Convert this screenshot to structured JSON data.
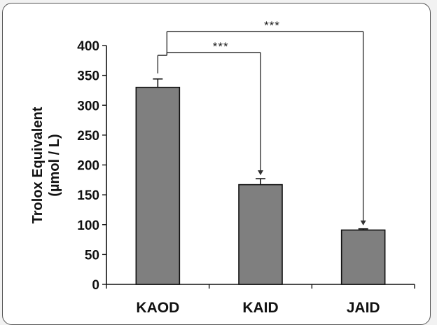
{
  "chart_data": {
    "type": "bar",
    "categories": [
      "KAOD",
      "KAID",
      "JAID"
    ],
    "values": [
      330,
      167,
      91
    ],
    "errors": [
      14,
      10,
      2
    ],
    "ylabel_line1": "Trolox Equivalent",
    "ylabel_line2": "(µmol / L)",
    "ylim": [
      0,
      400
    ],
    "yticks": [
      0,
      50,
      100,
      150,
      200,
      250,
      300,
      350,
      400
    ],
    "grid": false,
    "bar_color": "#7f7f7f",
    "significance": [
      {
        "from": "KAOD",
        "to": "KAID",
        "label": "***"
      },
      {
        "from": "KAOD",
        "to": "JAID",
        "label": "***"
      }
    ]
  }
}
